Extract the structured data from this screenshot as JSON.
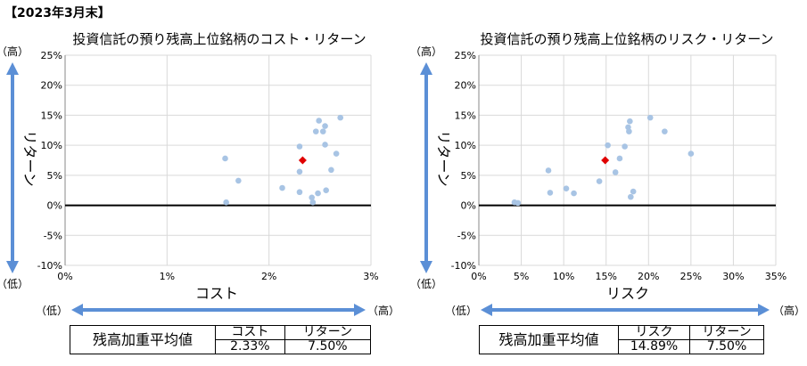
{
  "header": "【2023年3月末】",
  "colors": {
    "point": "#a8c4e4",
    "weighted_point": "#e00000",
    "arrow": "#5b8fd6",
    "grid": "#d9d9d9",
    "axis": "#000000"
  },
  "chart_data": [
    {
      "type": "scatter",
      "title": "投資信託の預り残高上位銘柄のコスト・リターン",
      "xlabel": "コスト",
      "ylabel": "リターン",
      "xlim": [
        0,
        3
      ],
      "ylim": [
        -10,
        25
      ],
      "x_ticks": [
        "0%",
        "1%",
        "2%",
        "3%"
      ],
      "y_ticks": [
        "25%",
        "20%",
        "15%",
        "10%",
        "5%",
        "0%",
        "-5%",
        "-10%"
      ],
      "grid": true,
      "arrow_labels": {
        "low": "（低）",
        "high": "（高）"
      },
      "points": [
        [
          1.57,
          7.8
        ],
        [
          1.58,
          0.5
        ],
        [
          1.7,
          4.1
        ],
        [
          2.13,
          2.9
        ],
        [
          2.3,
          9.8
        ],
        [
          2.3,
          5.6
        ],
        [
          2.3,
          2.2
        ],
        [
          2.42,
          1.3
        ],
        [
          2.43,
          0.5
        ],
        [
          2.46,
          12.3
        ],
        [
          2.48,
          2.0
        ],
        [
          2.49,
          14.1
        ],
        [
          2.53,
          12.3
        ],
        [
          2.55,
          13.2
        ],
        [
          2.55,
          10.1
        ],
        [
          2.56,
          2.5
        ],
        [
          2.61,
          5.9
        ],
        [
          2.66,
          8.6
        ],
        [
          2.7,
          14.6
        ]
      ],
      "weighted_average": {
        "x": 2.33,
        "y": 7.5
      },
      "summary": {
        "label": "残高加重平均値",
        "col1": "コスト",
        "col1_value": "2.33%",
        "col2": "リターン",
        "col2_value": "7.50%"
      }
    },
    {
      "type": "scatter",
      "title": "投資信託の預り残高上位銘柄のリスク・リターン",
      "xlabel": "リスク",
      "ylabel": "リターン",
      "xlim": [
        0,
        35
      ],
      "ylim": [
        -10,
        25
      ],
      "x_ticks": [
        "0%",
        "5%",
        "10%",
        "15%",
        "20%",
        "25%",
        "30%",
        "35%"
      ],
      "y_ticks": [
        "25%",
        "20%",
        "15%",
        "10%",
        "5%",
        "0%",
        "-5%",
        "-10%"
      ],
      "grid": true,
      "arrow_labels": {
        "low": "（低）",
        "high": "（高）"
      },
      "points": [
        [
          4.2,
          0.5
        ],
        [
          4.6,
          0.4
        ],
        [
          8.2,
          5.8
        ],
        [
          8.4,
          2.1
        ],
        [
          10.3,
          2.8
        ],
        [
          11.2,
          2.0
        ],
        [
          14.2,
          4.0
        ],
        [
          15.2,
          10.0
        ],
        [
          16.1,
          5.5
        ],
        [
          16.6,
          7.8
        ],
        [
          17.2,
          9.8
        ],
        [
          17.6,
          13.0
        ],
        [
          17.7,
          12.3
        ],
        [
          17.8,
          14.0
        ],
        [
          17.9,
          1.4
        ],
        [
          18.2,
          2.3
        ],
        [
          20.2,
          14.6
        ],
        [
          21.9,
          12.3
        ],
        [
          25.0,
          8.6
        ]
      ],
      "weighted_average": {
        "x": 14.89,
        "y": 7.5
      },
      "summary": {
        "label": "残高加重平均値",
        "col1": "リスク",
        "col1_value": "14.89%",
        "col2": "リターン",
        "col2_value": "7.50%"
      }
    }
  ]
}
